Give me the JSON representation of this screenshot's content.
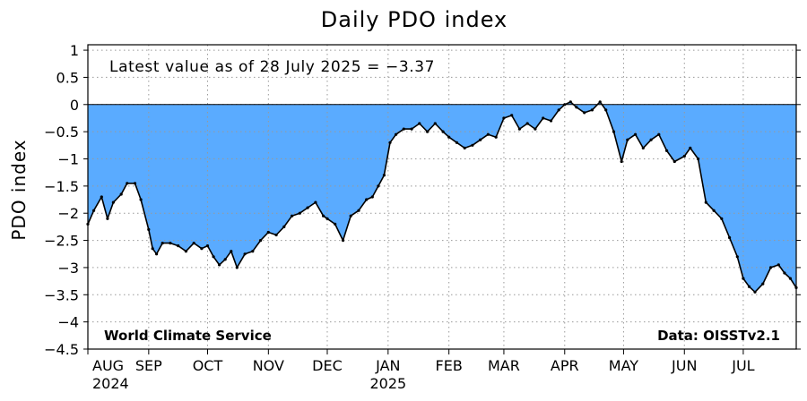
{
  "chart_data": {
    "type": "area",
    "title": "Daily PDO index",
    "ylabel": "PDO index",
    "xlabel": "",
    "ylim": [
      -4.5,
      1.1
    ],
    "y_ticks": [
      1,
      0.5,
      0,
      -0.5,
      -1,
      -1.5,
      -2,
      -2.5,
      -3,
      -3.5,
      -4,
      -4.5
    ],
    "y_tick_labels": [
      "1",
      "0.5",
      "0",
      "-0.5",
      "-1",
      "-1.5",
      "-2",
      "-2.5",
      "-3",
      "-3.5",
      "-4",
      "-4.5"
    ],
    "xlim": [
      "2024-08-01",
      "2025-07-28"
    ],
    "x_ticks": [
      {
        "date": "2024-08-01",
        "label": "AUG",
        "year": "2024"
      },
      {
        "date": "2024-09-01",
        "label": "SEP",
        "year": ""
      },
      {
        "date": "2024-10-01",
        "label": "OCT",
        "year": ""
      },
      {
        "date": "2024-11-01",
        "label": "NOV",
        "year": ""
      },
      {
        "date": "2024-12-01",
        "label": "DEC",
        "year": ""
      },
      {
        "date": "2025-01-01",
        "label": "JAN",
        "year": "2025"
      },
      {
        "date": "2025-02-01",
        "label": "FEB",
        "year": ""
      },
      {
        "date": "2025-03-01",
        "label": "MAR",
        "year": ""
      },
      {
        "date": "2025-04-01",
        "label": "APR",
        "year": ""
      },
      {
        "date": "2025-05-01",
        "label": "MAY",
        "year": ""
      },
      {
        "date": "2025-06-01",
        "label": "JUN",
        "year": ""
      },
      {
        "date": "2025-07-01",
        "label": "JUL",
        "year": ""
      }
    ],
    "grid": true,
    "fill_color": "#5aabff",
    "line_color": "#000000",
    "annotations": {
      "latest": "Latest value as of 28 July 2025 = −3.37",
      "source_left": "World Climate Service",
      "source_right": "Data: OISSTv2.1"
    },
    "series": [
      {
        "dates": [
          "2024-08-01",
          "2024-08-04",
          "2024-08-08",
          "2024-08-11",
          "2024-08-14",
          "2024-08-18",
          "2024-08-21",
          "2024-08-25",
          "2024-08-28",
          "2024-09-01",
          "2024-09-03",
          "2024-09-05",
          "2024-09-08",
          "2024-09-12",
          "2024-09-16",
          "2024-09-20",
          "2024-09-24",
          "2024-09-28",
          "2024-10-01",
          "2024-10-04",
          "2024-10-07",
          "2024-10-10",
          "2024-10-13",
          "2024-10-16",
          "2024-10-20",
          "2024-10-24",
          "2024-10-28",
          "2024-11-01",
          "2024-11-05",
          "2024-11-09",
          "2024-11-13",
          "2024-11-17",
          "2024-11-21",
          "2024-11-25",
          "2024-11-29",
          "2024-12-01",
          "2024-12-05",
          "2024-12-09",
          "2024-12-13",
          "2024-12-17",
          "2024-12-21",
          "2024-12-24",
          "2024-12-27",
          "2024-12-30",
          "2025-01-02",
          "2025-01-05",
          "2025-01-09",
          "2025-01-13",
          "2025-01-17",
          "2025-01-21",
          "2025-01-25",
          "2025-01-29",
          "2025-02-01",
          "2025-02-05",
          "2025-02-09",
          "2025-02-13",
          "2025-02-17",
          "2025-02-21",
          "2025-02-25",
          "2025-03-01",
          "2025-03-05",
          "2025-03-09",
          "2025-03-13",
          "2025-03-17",
          "2025-03-21",
          "2025-03-25",
          "2025-03-29",
          "2025-04-01",
          "2025-04-04",
          "2025-04-07",
          "2025-04-11",
          "2025-04-15",
          "2025-04-19",
          "2025-04-22",
          "2025-04-26",
          "2025-04-30",
          "2025-05-03",
          "2025-05-07",
          "2025-05-11",
          "2025-05-15",
          "2025-05-19",
          "2025-05-23",
          "2025-05-27",
          "2025-06-01",
          "2025-06-04",
          "2025-06-08",
          "2025-06-12",
          "2025-06-16",
          "2025-06-20",
          "2025-06-24",
          "2025-06-28",
          "2025-07-01",
          "2025-07-04",
          "2025-07-07",
          "2025-07-11",
          "2025-07-15",
          "2025-07-19",
          "2025-07-22",
          "2025-07-25",
          "2025-07-28"
        ],
        "values": [
          -2.2,
          -1.95,
          -1.7,
          -2.1,
          -1.8,
          -1.65,
          -1.45,
          -1.45,
          -1.75,
          -2.3,
          -2.65,
          -2.75,
          -2.55,
          -2.55,
          -2.6,
          -2.7,
          -2.55,
          -2.65,
          -2.6,
          -2.8,
          -2.95,
          -2.85,
          -2.7,
          -3.0,
          -2.75,
          -2.7,
          -2.5,
          -2.35,
          -2.4,
          -2.25,
          -2.05,
          -2.0,
          -1.9,
          -1.8,
          -2.05,
          -2.1,
          -2.2,
          -2.5,
          -2.05,
          -1.95,
          -1.75,
          -1.7,
          -1.5,
          -1.3,
          -0.7,
          -0.55,
          -0.45,
          -0.45,
          -0.35,
          -0.5,
          -0.35,
          -0.5,
          -0.6,
          -0.7,
          -0.8,
          -0.75,
          -0.65,
          -0.55,
          -0.6,
          -0.25,
          -0.2,
          -0.45,
          -0.35,
          -0.45,
          -0.25,
          -0.3,
          -0.1,
          0.0,
          0.05,
          -0.05,
          -0.15,
          -0.1,
          0.05,
          -0.1,
          -0.5,
          -1.05,
          -0.65,
          -0.55,
          -0.8,
          -0.65,
          -0.55,
          -0.85,
          -1.05,
          -0.95,
          -0.8,
          -1.0,
          -1.8,
          -1.95,
          -2.1,
          -2.45,
          -2.8,
          -3.2,
          -3.35,
          -3.45,
          -3.3,
          -3.0,
          -2.95,
          -3.1,
          -3.2,
          -3.37
        ]
      }
    ]
  }
}
